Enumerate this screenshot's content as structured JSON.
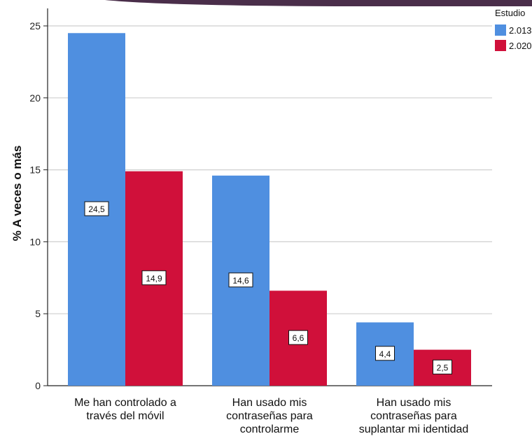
{
  "chart_data": {
    "type": "bar",
    "title": "",
    "xlabel": "",
    "ylabel": "% A veces o más",
    "ylim": [
      0,
      25
    ],
    "yticks": [
      0,
      5,
      10,
      15,
      20,
      25
    ],
    "grid": true,
    "legend_title": "Estudio",
    "legend_position": "top-right",
    "categories": [
      [
        "Me han controlado a",
        "través del móvil"
      ],
      [
        "Han usado mis",
        "contraseñas para",
        "controlarme"
      ],
      [
        "Han usado mis",
        "contraseñas para",
        "suplantar mi identidad"
      ]
    ],
    "series": [
      {
        "name": "2.013",
        "color": "#4F8FE0",
        "values": [
          24.5,
          14.6,
          4.4
        ],
        "labels": [
          "24,5",
          "14,6",
          "4,4"
        ]
      },
      {
        "name": "2.020",
        "color": "#D0103A",
        "values": [
          14.9,
          6.6,
          2.5
        ],
        "labels": [
          "14,9",
          "6,6",
          "2,5"
        ]
      }
    ]
  },
  "decoration": {
    "top_swoosh_color": "#4A2E4A"
  }
}
